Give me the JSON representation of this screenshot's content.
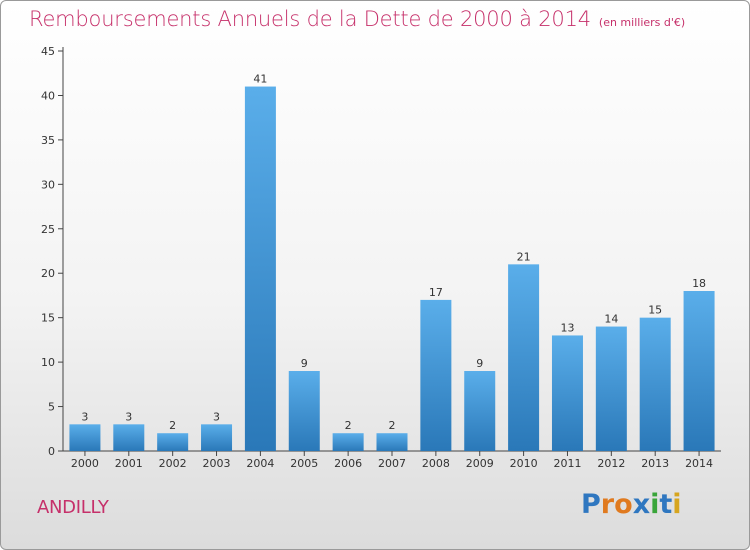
{
  "title": "Remboursements Annuels de la Dette de 2000 à 2014",
  "unit_label": "(en milliers d'€)",
  "commune": "ANDILLY",
  "logo": {
    "text": "Proxiti",
    "letters": [
      "P",
      "r",
      "o",
      "x",
      "i",
      "t",
      "i"
    ],
    "colors": [
      "#2f77c0",
      "#e07a1f",
      "#e07a1f",
      "#2f77c0",
      "#3aa53a",
      "#2f77c0",
      "#d6a51f"
    ]
  },
  "colors": {
    "bar_light": "#5aaeea",
    "bar_dark": "#2a78b8",
    "title": "#c6306a",
    "axis": "#333333"
  },
  "chart_data": {
    "type": "bar",
    "title": "Remboursements Annuels de la Dette de 2000 à 2014",
    "subtitle": "(en milliers d'€)",
    "categories": [
      "2000",
      "2001",
      "2002",
      "2003",
      "2004",
      "2005",
      "2006",
      "2007",
      "2008",
      "2009",
      "2010",
      "2011",
      "2012",
      "2013",
      "2014"
    ],
    "values": [
      3,
      3,
      2,
      3,
      41,
      9,
      2,
      2,
      17,
      9,
      21,
      13,
      14,
      15,
      18
    ],
    "yticks": [
      0,
      5,
      10,
      15,
      20,
      25,
      30,
      35,
      40,
      45
    ],
    "ylim": [
      0,
      45
    ],
    "xlabel": "",
    "ylabel": "",
    "grid": false,
    "data_labels": true
  }
}
